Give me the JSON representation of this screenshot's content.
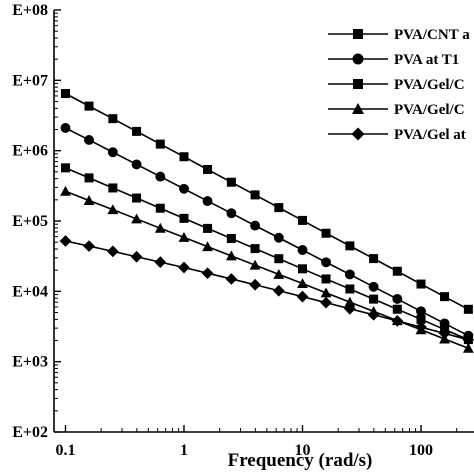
{
  "chart_data": {
    "type": "line",
    "xscale": "log",
    "yscale": "log",
    "xlabel": "Frequency (rad/s)",
    "ylabel": "",
    "xlim": [
      0.08,
      280
    ],
    "ylim": [
      100,
      100000000
    ],
    "xticks": [
      {
        "value": 0.1,
        "label": "0.1"
      },
      {
        "value": 1,
        "label": "1"
      },
      {
        "value": 10,
        "label": "10"
      },
      {
        "value": 100,
        "label": "100"
      }
    ],
    "yticks": [
      {
        "value": 100,
        "label": "E+02"
      },
      {
        "value": 1000,
        "label": "E+03"
      },
      {
        "value": 10000,
        "label": "E+04"
      },
      {
        "value": 100000,
        "label": "E+05"
      },
      {
        "value": 1000000,
        "label": "E+06"
      },
      {
        "value": 10000000,
        "label": "E+07"
      },
      {
        "value": 100000000,
        "label": "E+08"
      }
    ],
    "legend_position": "top-right",
    "grid": false,
    "x": [
      0.1,
      0.158,
      0.251,
      0.398,
      0.631,
      1.0,
      1.58,
      2.51,
      3.98,
      6.31,
      10.0,
      15.8,
      25.1,
      39.8,
      63.1,
      100,
      158,
      251
    ],
    "series": [
      {
        "name": "PVA/CNT a",
        "marker": "square",
        "values": [
          6500000,
          4300000,
          2850000,
          1880000,
          1240000,
          820000,
          540000,
          356000,
          235000,
          155000,
          102000,
          67000,
          44300,
          29200,
          19300,
          12700,
          8400,
          5550
        ]
      },
      {
        "name": "PVA at T1",
        "marker": "circle",
        "values": [
          2100000,
          1420000,
          950000,
          638000,
          428000,
          287000,
          192000,
          129000,
          86000,
          57800,
          38700,
          25900,
          17400,
          11600,
          7800,
          5200,
          3500,
          2340
        ]
      },
      {
        "name": "PVA/Gel/C",
        "marker": "square",
        "values": [
          570000,
          410000,
          295000,
          212000,
          152000,
          109000,
          78500,
          56400,
          40500,
          29100,
          20900,
          15000,
          10800,
          7750,
          5570,
          4000,
          2870,
          2060
        ]
      },
      {
        "name": "PVA/Gel/C",
        "marker": "triangle",
        "values": [
          265000,
          196000,
          145000,
          107000,
          79000,
          58400,
          43200,
          31900,
          23600,
          17400,
          12900,
          9500,
          7030,
          5190,
          3840,
          2840,
          2100,
          1550
        ]
      },
      {
        "name": "PVA/Gel at",
        "marker": "diamond",
        "values": [
          52000,
          44000,
          37000,
          31000,
          26000,
          21800,
          18100,
          15000,
          12400,
          10200,
          8400,
          6900,
          5660,
          4640,
          3800,
          3100,
          2520,
          2050
        ]
      }
    ]
  }
}
